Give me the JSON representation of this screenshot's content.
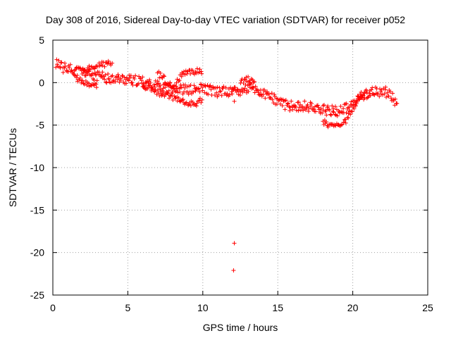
{
  "chart_data": {
    "type": "scatter",
    "title": "Day 308 of 2016, Sidereal Day-to-day VTEC variation (SDTVAR) for receiver p052",
    "xlabel": "GPS time / hours",
    "ylabel": "SDTVAR / TECUs",
    "xlim": [
      0,
      25
    ],
    "ylim": [
      -25,
      5
    ],
    "xticks": [
      0,
      5,
      10,
      15,
      20,
      25
    ],
    "yticks": [
      5,
      0,
      -5,
      -10,
      -15,
      -20,
      -25
    ],
    "grid": true,
    "marker": "+",
    "color": "#ff0000",
    "series": [
      {
        "name": "SDTVAR",
        "main_trend": {
          "x": [
            0.2,
            0.5,
            1.0,
            1.5,
            2.0,
            2.5,
            3.0,
            3.5,
            4.0,
            4.5,
            5.0,
            5.5,
            6.0,
            6.5,
            7.0,
            7.5,
            8.0,
            8.5,
            9.0,
            9.5,
            10.0,
            10.5,
            11.0,
            11.5,
            12.0,
            12.5,
            13.0,
            13.5,
            14.0,
            14.5,
            15.0,
            15.5,
            16.0,
            16.5,
            17.0,
            17.5,
            18.0,
            18.5,
            19.0,
            19.5,
            20.0,
            20.5,
            21.0,
            21.5,
            22.0,
            22.5,
            23.0
          ],
          "y": [
            2.2,
            1.9,
            1.6,
            1.4,
            1.2,
            1.0,
            0.8,
            0.6,
            0.5,
            0.4,
            0.3,
            0.3,
            0.1,
            -0.1,
            -0.4,
            -0.5,
            -0.6,
            -0.8,
            -0.9,
            -0.9,
            -0.7,
            -0.9,
            -1.1,
            -1.0,
            -1.0,
            -0.9,
            -0.7,
            -0.8,
            -1.4,
            -1.6,
            -2.1,
            -2.6,
            -2.8,
            -2.7,
            -2.8,
            -3.0,
            -3.2,
            -3.3,
            -3.4,
            -3.1,
            -2.5,
            -1.7,
            -1.3,
            -1.1,
            -1.0,
            -1.3,
            -2.6
          ]
        },
        "upper_branch": {
          "x": [
            2.0,
            2.5,
            3.0,
            3.5,
            4.0,
            7.0,
            7.5,
            8.0,
            8.5,
            9.0,
            9.5,
            10.0,
            12.5,
            13.0,
            13.5
          ],
          "y": [
            1.3,
            1.7,
            2.0,
            2.2,
            2.3,
            1.1,
            0.3,
            -0.6,
            0.8,
            1.2,
            1.3,
            1.3,
            0.2,
            0.4,
            -0.2
          ]
        },
        "lower_branch": {
          "x": [
            1.5,
            2.0,
            2.5,
            3.0,
            6.0,
            6.5,
            7.0,
            7.5,
            8.5,
            9.0,
            9.5,
            10.0,
            18.0,
            18.5,
            19.0,
            19.5,
            20.5,
            21.0
          ],
          "y": [
            0.6,
            0.1,
            -0.3,
            -0.5,
            -0.3,
            -0.7,
            -1.2,
            -1.5,
            -1.9,
            -2.4,
            -2.5,
            -2.0,
            -4.6,
            -5.0,
            -5.2,
            -4.6,
            -1.6,
            -1.2
          ]
        },
        "outliers": {
          "x": [
            12.1,
            12.05,
            12.0,
            12.1
          ],
          "y": [
            -18.9,
            -22.1,
            -0.7,
            -2.2
          ]
        }
      }
    ]
  }
}
